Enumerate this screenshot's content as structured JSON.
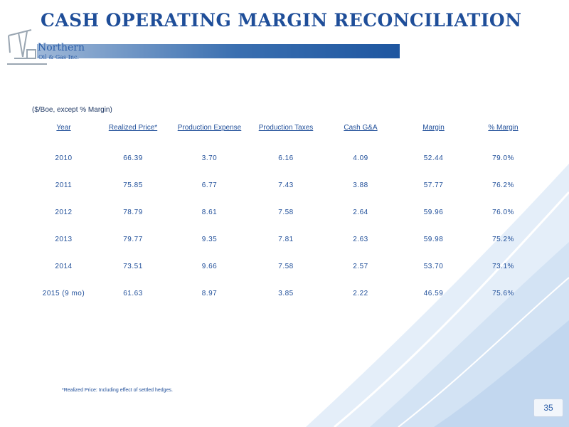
{
  "slide": {
    "title": "CASH OPERATING MARGIN RECONCILIATION",
    "page_number": "35"
  },
  "logo": {
    "name": "Northern",
    "subtitle": "Oil & Gas Inc."
  },
  "table": {
    "units_note": "($/Boe, except % Margin)",
    "columns": [
      "Year",
      "Realized Price*",
      "Production Expense",
      "Production Taxes",
      "Cash G&A",
      "Margin",
      "% Margin"
    ],
    "rows": [
      [
        "2010",
        "66.39",
        "3.70",
        "6.16",
        "4.09",
        "52.44",
        "79.0%"
      ],
      [
        "2011",
        "75.85",
        "6.77",
        "7.43",
        "3.88",
        "57.77",
        "76.2%"
      ],
      [
        "2012",
        "78.79",
        "8.61",
        "7.58",
        "2.64",
        "59.96",
        "76.0%"
      ],
      [
        "2013",
        "79.77",
        "9.35",
        "7.81",
        "2.63",
        "59.98",
        "75.2%"
      ],
      [
        "2014",
        "73.51",
        "9.66",
        "7.58",
        "2.57",
        "53.70",
        "73.1%"
      ],
      [
        "2015 (9 mo)",
        "61.63",
        "8.97",
        "3.85",
        "2.22",
        "46.59",
        "75.6%"
      ]
    ]
  },
  "footnote": "*Realized Price: Including effect of settled hedges.",
  "colors": {
    "title": "#1f4e99",
    "bar": "#3a6fb0",
    "table_text": "#1f4e99"
  }
}
